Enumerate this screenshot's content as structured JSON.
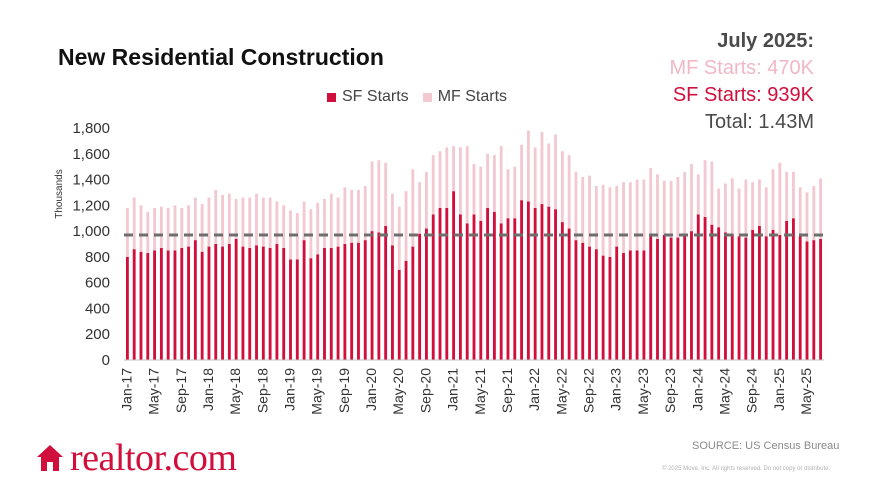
{
  "header": {
    "title": "New Residential Construction"
  },
  "summary": {
    "heading": "July 2025:",
    "mf_line": "MF Starts: 470K",
    "sf_line": "SF Starts:  939K",
    "total_line": "Total:  1.43M"
  },
  "colors": {
    "sf": "#d10f3c",
    "mf": "#f2c9d1",
    "avg_line": "#6e6e6e",
    "axis_text": "#333333",
    "brand": "#d10f3c"
  },
  "footer": {
    "brand_name": "realtor.com",
    "brand_icon": "house-icon",
    "source": "SOURCE: US Census Bureau",
    "copyright": "© 2025 Move, Inc. All rights reserved. Do not copy or distribute."
  },
  "chart_data": {
    "type": "bar",
    "stacked": true,
    "ylabel": "Thousands",
    "ylim": [
      0,
      1800
    ],
    "yticks": [
      0,
      200,
      400,
      600,
      800,
      1000,
      1200,
      1400,
      1600,
      1800
    ],
    "ytick_labels": [
      "0",
      "200",
      "400",
      "600",
      "800",
      "1,000",
      "1,200",
      "1,400",
      "1,600",
      "1,800"
    ],
    "grid": false,
    "legend_position": "top-center",
    "xtick_labels": [
      "Jan-17",
      "May-17",
      "Sep-17",
      "Jan-18",
      "May-18",
      "Sep-18",
      "Jan-19",
      "May-19",
      "Sep-19",
      "Jan-20",
      "May-20",
      "Sep-20",
      "Jan-21",
      "May-21",
      "Sep-21",
      "Jan-22",
      "May-22",
      "Sep-22",
      "Jan-23",
      "May-23",
      "Sep-23",
      "Jan-24",
      "May-24",
      "Sep-24",
      "Jan-25",
      "May-25"
    ],
    "categories": [
      "Jan-17",
      "Feb-17",
      "Mar-17",
      "Apr-17",
      "May-17",
      "Jun-17",
      "Jul-17",
      "Aug-17",
      "Sep-17",
      "Oct-17",
      "Nov-17",
      "Dec-17",
      "Jan-18",
      "Feb-18",
      "Mar-18",
      "Apr-18",
      "May-18",
      "Jun-18",
      "Jul-18",
      "Aug-18",
      "Sep-18",
      "Oct-18",
      "Nov-18",
      "Dec-18",
      "Jan-19",
      "Feb-19",
      "Mar-19",
      "Apr-19",
      "May-19",
      "Jun-19",
      "Jul-19",
      "Aug-19",
      "Sep-19",
      "Oct-19",
      "Nov-19",
      "Dec-19",
      "Jan-20",
      "Feb-20",
      "Mar-20",
      "Apr-20",
      "May-20",
      "Jun-20",
      "Jul-20",
      "Aug-20",
      "Sep-20",
      "Oct-20",
      "Nov-20",
      "Dec-20",
      "Jan-21",
      "Feb-21",
      "Mar-21",
      "Apr-21",
      "May-21",
      "Jun-21",
      "Jul-21",
      "Aug-21",
      "Sep-21",
      "Oct-21",
      "Nov-21",
      "Dec-21",
      "Jan-22",
      "Feb-22",
      "Mar-22",
      "Apr-22",
      "May-22",
      "Jun-22",
      "Jul-22",
      "Aug-22",
      "Sep-22",
      "Oct-22",
      "Nov-22",
      "Dec-22",
      "Jan-23",
      "Feb-23",
      "Mar-23",
      "Apr-23",
      "May-23",
      "Jun-23",
      "Jul-23",
      "Aug-23",
      "Sep-23",
      "Oct-23",
      "Nov-23",
      "Dec-23",
      "Jan-24",
      "Feb-24",
      "Mar-24",
      "Apr-24",
      "May-24",
      "Jun-24",
      "Jul-24",
      "Aug-24",
      "Sep-24",
      "Oct-24",
      "Nov-24",
      "Dec-24",
      "Jan-25",
      "Feb-25",
      "Mar-25",
      "Apr-25",
      "May-25",
      "Jun-25",
      "Jul-25"
    ],
    "series": [
      {
        "name": "SF Starts",
        "values": [
          800,
          860,
          840,
          830,
          850,
          870,
          850,
          850,
          870,
          880,
          930,
          840,
          880,
          900,
          880,
          900,
          940,
          880,
          870,
          890,
          880,
          870,
          900,
          870,
          780,
          780,
          930,
          790,
          820,
          870,
          870,
          880,
          900,
          910,
          910,
          930,
          1000,
          990,
          1040,
          890,
          700,
          770,
          880,
          980,
          1020,
          1130,
          1180,
          1180,
          1310,
          1130,
          1060,
          1130,
          1080,
          1180,
          1150,
          1060,
          1100,
          1100,
          1240,
          1230,
          1180,
          1210,
          1190,
          1170,
          1070,
          1020,
          930,
          910,
          880,
          860,
          810,
          800,
          880,
          830,
          850,
          850,
          850,
          960,
          940,
          970,
          950,
          950,
          980,
          1000,
          1130,
          1110,
          1050,
          1030,
          990,
          980,
          960,
          950,
          1010,
          1040,
          960,
          1010,
          970,
          1080,
          1100,
          960,
          920,
          930,
          939
        ]
      },
      {
        "name": "MF Starts",
        "values": [
          380,
          400,
          360,
          320,
          330,
          320,
          330,
          350,
          310,
          320,
          330,
          370,
          380,
          420,
          400,
          390,
          310,
          380,
          390,
          400,
          380,
          390,
          330,
          330,
          380,
          360,
          300,
          380,
          400,
          380,
          420,
          380,
          440,
          410,
          410,
          420,
          540,
          560,
          490,
          400,
          490,
          540,
          600,
          400,
          440,
          460,
          440,
          470,
          350,
          520,
          600,
          390,
          420,
          420,
          440,
          600,
          380,
          400,
          430,
          550,
          470,
          560,
          490,
          580,
          550,
          570,
          530,
          510,
          550,
          490,
          550,
          540,
          470,
          550,
          530,
          550,
          550,
          530,
          500,
          420,
          440,
          470,
          480,
          520,
          310,
          440,
          490,
          300,
          380,
          430,
          370,
          450,
          370,
          360,
          380,
          470,
          560,
          380,
          360,
          380,
          380,
          420,
          470
        ]
      }
    ],
    "annotations": [
      {
        "type": "horizontal-line",
        "style": "dashed",
        "y": 970
      }
    ]
  }
}
